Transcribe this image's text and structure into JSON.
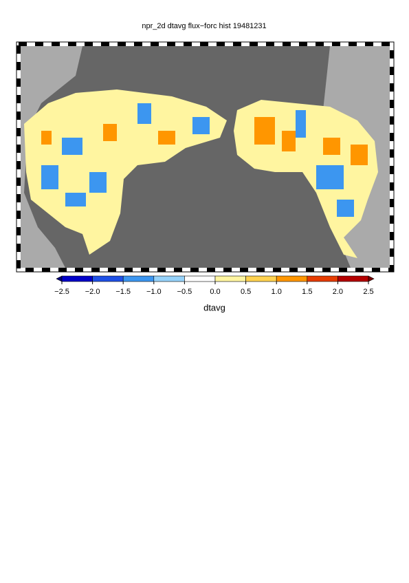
{
  "chart_data": {
    "type": "colorbar",
    "title": "npr_2d dtavg flux−forc hist 19481231",
    "xlabel": "dtavg",
    "xlim": [
      -2.5,
      2.5
    ],
    "xticks": [
      {
        "value": -2.5,
        "label": "−2.5"
      },
      {
        "value": -2,
        "label": "−2.0"
      },
      {
        "value": -1.5,
        "label": "−1.5"
      },
      {
        "value": -1,
        "label": "−1.0"
      },
      {
        "value": -0.5,
        "label": "−0.5"
      },
      {
        "value": 0,
        "label": "0.0"
      },
      0.5,
      {
        "value": 1,
        "label": "1.0"
      },
      1.5,
      {
        "value": 2,
        "label": "2.0"
      },
      2.5
    ],
    "colors": [
      "#00007a",
      "#0000c8",
      "#1e50e6",
      "#3c96f0",
      "#96d2fa",
      "#ffffff",
      "#fff5a0",
      "#ffd250",
      "#ff9600",
      "#e63c00",
      "#b40000",
      "#780000"
    ]
  }
}
